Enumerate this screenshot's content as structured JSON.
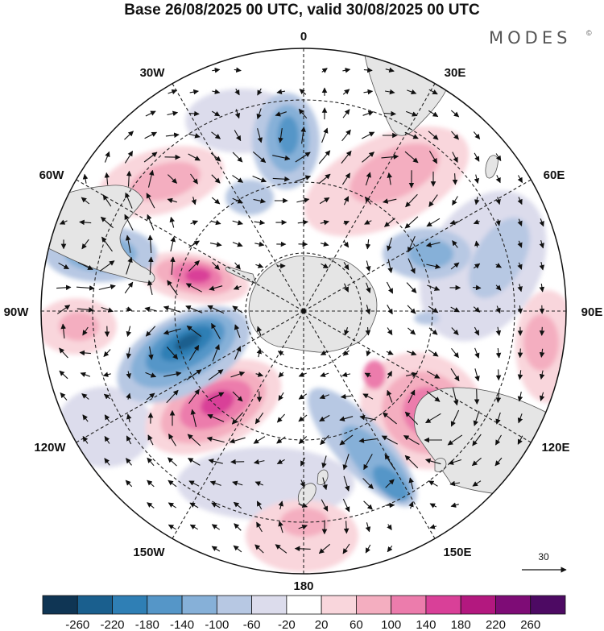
{
  "title": "Base 26/08/2025 00 UTC, valid 30/08/2025 00 UTC",
  "brand": {
    "name": "MODES",
    "mark": "©"
  },
  "longitude_labels": {
    "n0": "0",
    "n30E": "30E",
    "n60E": "60E",
    "n90E": "90E",
    "n120E": "120E",
    "n150E": "150E",
    "n180": "180",
    "n150W": "150W",
    "n120W": "120W",
    "n90W": "90W",
    "n60W": "60W",
    "n30W": "30W"
  },
  "reference_vector": {
    "value": "30"
  },
  "colorbar": {
    "colors": [
      "#0f3554",
      "#1a5f8e",
      "#2f7fb5",
      "#5596c8",
      "#86b0d8",
      "#b7c8e3",
      "#dcdcec",
      "#ffffff",
      "#f9d6dc",
      "#f4aec0",
      "#ec7cac",
      "#d94098",
      "#b3187f",
      "#7e0c76",
      "#4d0a63"
    ],
    "labels": [
      "-260",
      "-220",
      "-180",
      "-140",
      "-100",
      "-60",
      "-20",
      "20",
      "60",
      "100",
      "140",
      "180",
      "220",
      "260"
    ]
  },
  "colors": {
    "land": "#e5e5e5",
    "grid": "#222222",
    "frame": "#111111"
  }
}
